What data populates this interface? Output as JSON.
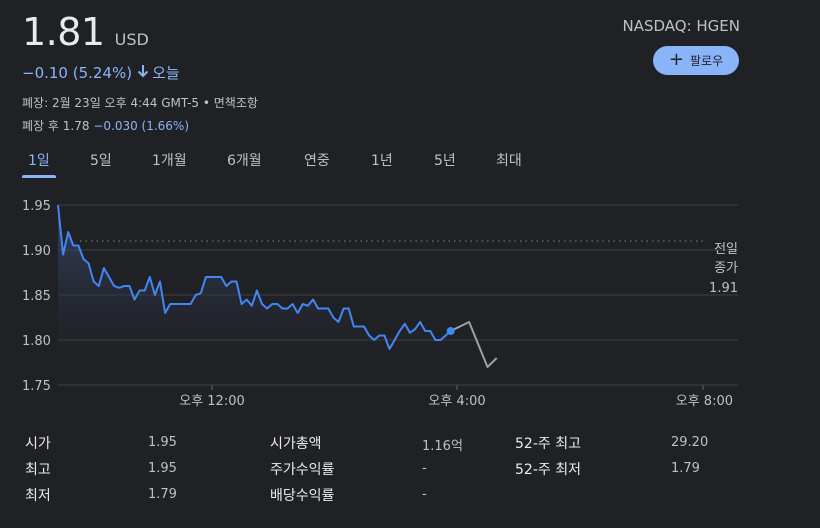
{
  "quote": {
    "price": "1.81",
    "currency": "USD",
    "change": "−0.10 (5.24%)",
    "change_direction_icon": "arrow-down-icon",
    "change_period": "오늘",
    "status_line": "폐장: 2월 23일 오후 4:44 GMT-5 • 면책조항",
    "after_hours_label": "폐장 후",
    "after_hours_price": "1.78",
    "after_hours_change": "−0.030 (1.66%)",
    "ticker": "NASDAQ: HGEN",
    "follow_label": "팔로우",
    "accent_color": "#8ab4f8"
  },
  "tabs": [
    {
      "label": "1일",
      "active": true
    },
    {
      "label": "5일",
      "active": false
    },
    {
      "label": "1개월",
      "active": false
    },
    {
      "label": "6개월",
      "active": false
    },
    {
      "label": "연중",
      "active": false
    },
    {
      "label": "1년",
      "active": false
    },
    {
      "label": "5년",
      "active": false
    },
    {
      "label": "최대",
      "active": false
    }
  ],
  "chart_data": {
    "type": "line",
    "yticks": [
      "1.95",
      "1.90",
      "1.85",
      "1.80",
      "1.75"
    ],
    "ylim": [
      1.75,
      1.95
    ],
    "xticks": [
      "오후 12:00",
      "오후 4:00",
      "오후 8:00"
    ],
    "prev_close_label_1": "전일",
    "prev_close_label_2": "종가",
    "prev_close_value": "1.91",
    "prev_close": 1.91,
    "series": [
      {
        "values": [
          1.95,
          1.895,
          1.92,
          1.905,
          1.905,
          1.89,
          1.885,
          1.865,
          1.86,
          1.88,
          1.87,
          1.86,
          1.858,
          1.86,
          1.86,
          1.845,
          1.855,
          1.855,
          1.87,
          1.85,
          1.865,
          1.83,
          1.84,
          1.84,
          1.84,
          1.84,
          1.84,
          1.85,
          1.852,
          1.87,
          1.87,
          1.87,
          1.87,
          1.86,
          1.865,
          1.865,
          1.84,
          1.845,
          1.838,
          1.855,
          1.84,
          1.835,
          1.84,
          1.84,
          1.835,
          1.835,
          1.84,
          1.83,
          1.84,
          1.838,
          1.845,
          1.835,
          1.835,
          1.835,
          1.825,
          1.82,
          1.835,
          1.835,
          1.815,
          1.815,
          1.815,
          1.805,
          1.8,
          1.805,
          1.805,
          1.79,
          1.8,
          1.81,
          1.818,
          1.808,
          1.812,
          1.82,
          1.81,
          1.81,
          1.8,
          1.8,
          1.805,
          1.81
        ]
      },
      {
        "values": [
          1.81,
          1.815,
          1.82,
          1.795,
          1.77,
          1.78
        ]
      }
    ],
    "colors": {
      "line": "#4285f4",
      "after_hours": "#9aa0a6",
      "fill_top": "#3c4e7a",
      "grid": "#3c4043",
      "dotted": "#5f6368"
    }
  },
  "stats": [
    {
      "label": "시가",
      "value": "1.95"
    },
    {
      "label": "최고",
      "value": "1.95"
    },
    {
      "label": "최저",
      "value": "1.79"
    },
    {
      "label": "시가총액",
      "value": "1.16억"
    },
    {
      "label": "주가수익률",
      "value": "-"
    },
    {
      "label": "배당수익률",
      "value": "-"
    },
    {
      "label": "52-주 최고",
      "value": "29.20"
    },
    {
      "label": "52-주 최저",
      "value": "1.79"
    }
  ]
}
